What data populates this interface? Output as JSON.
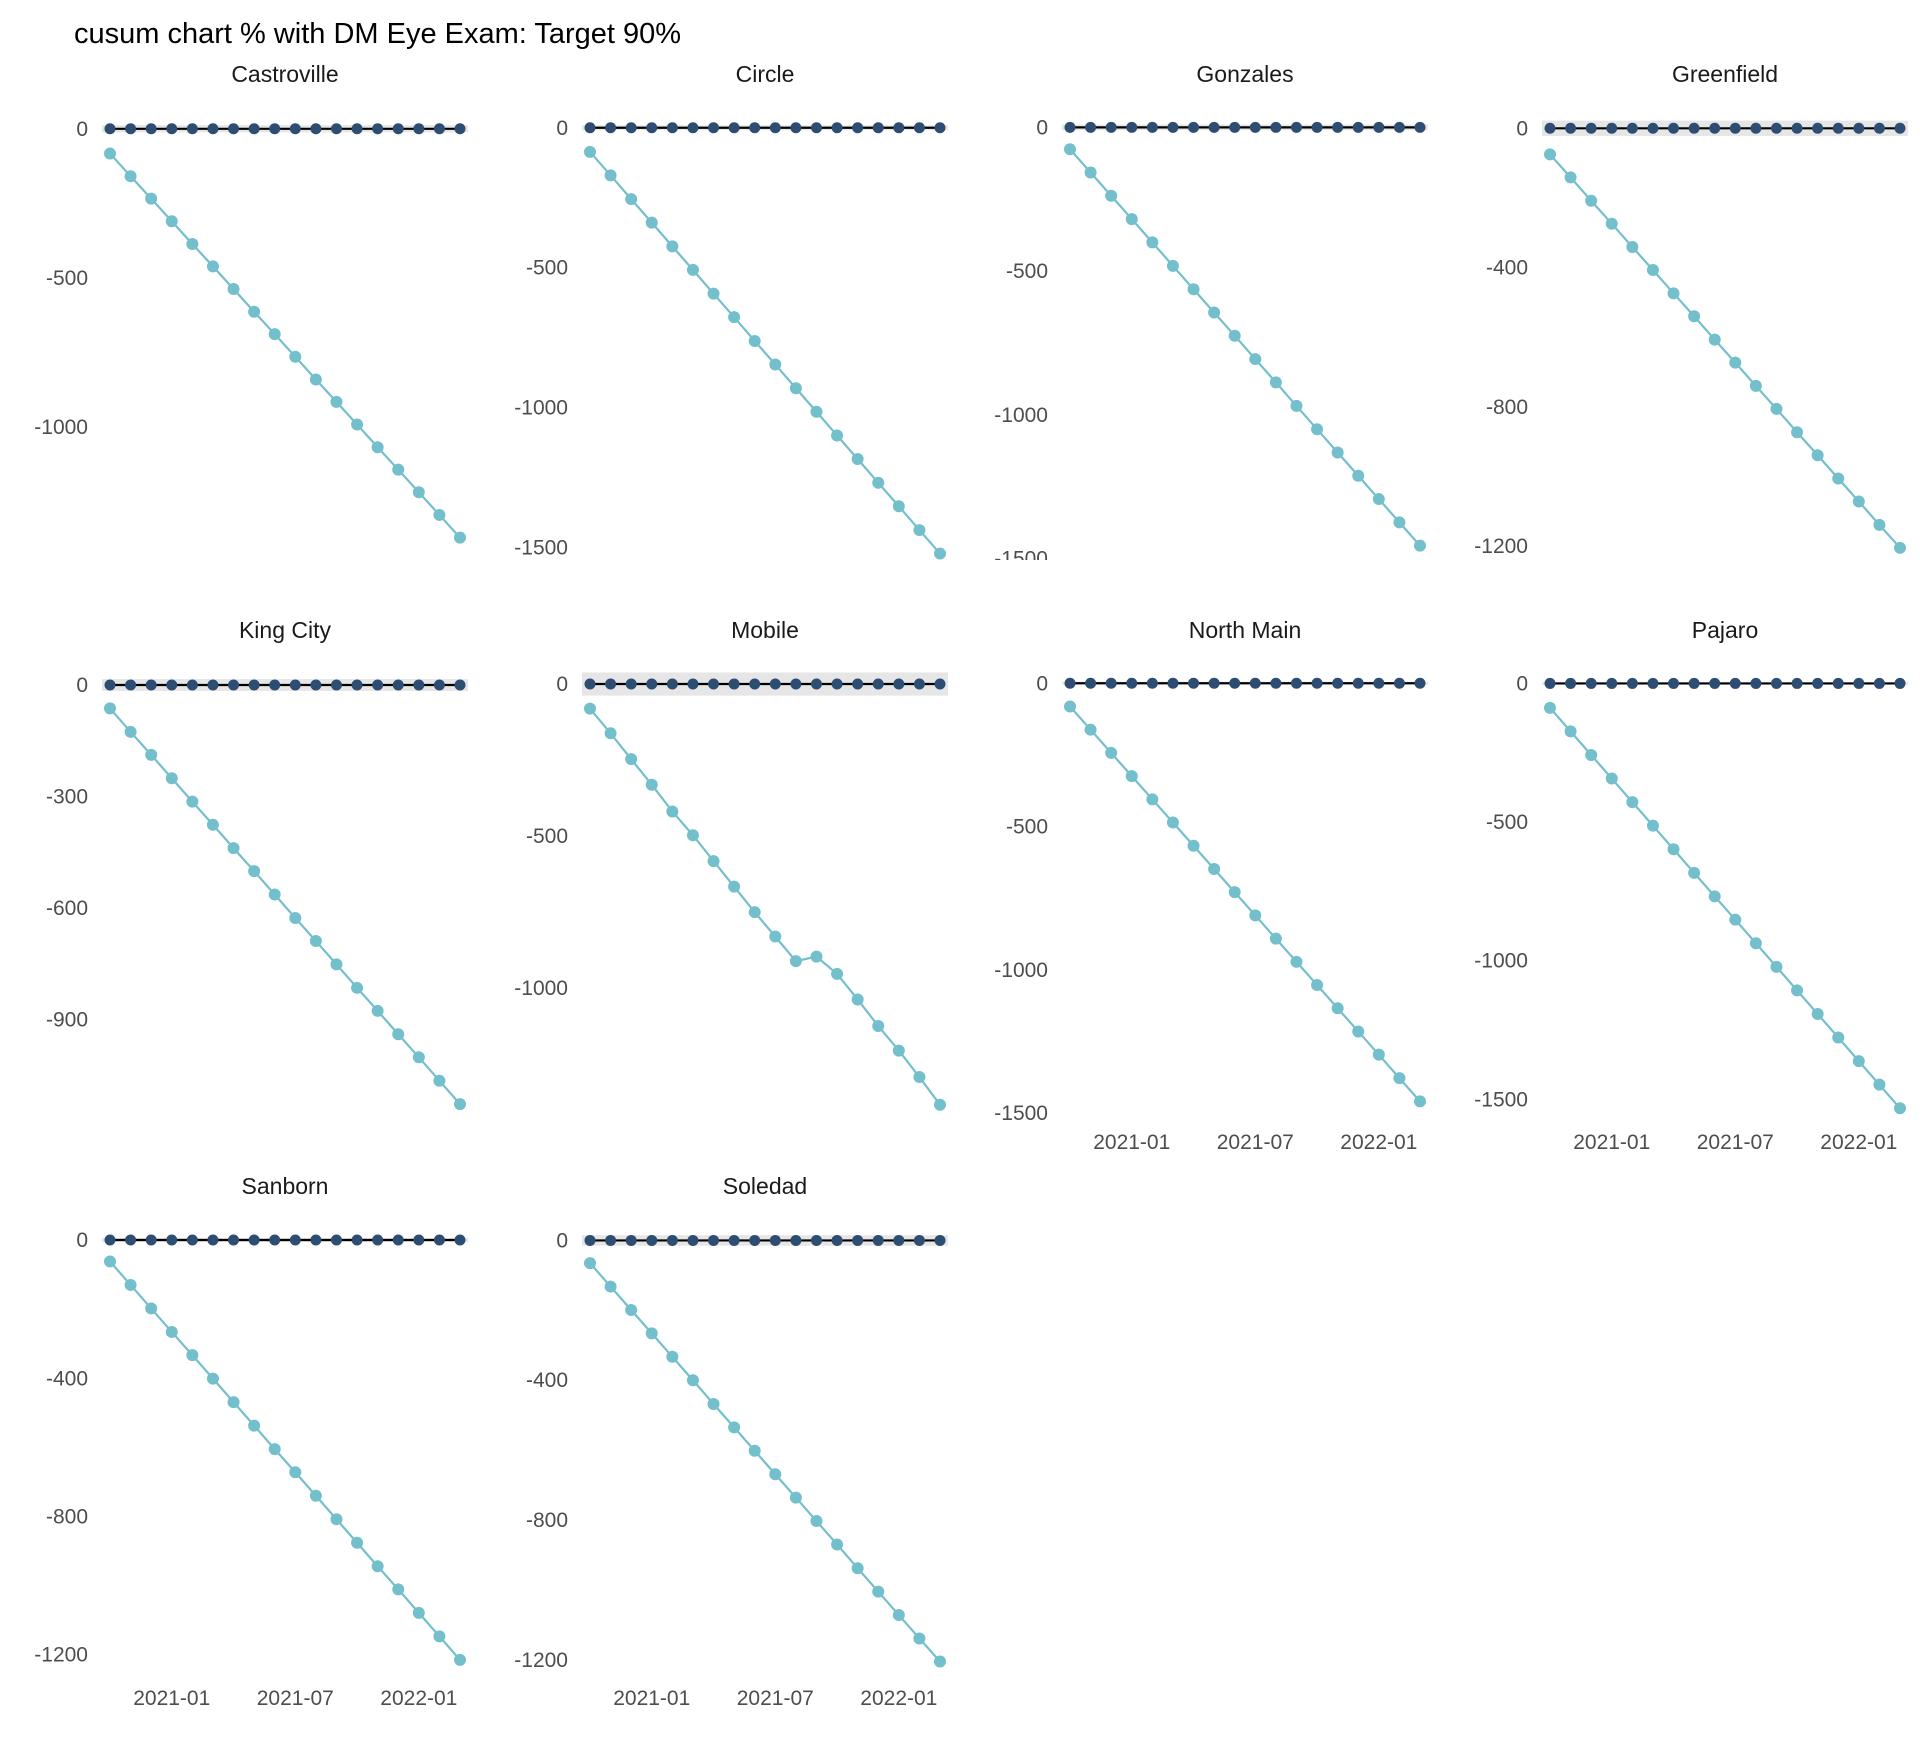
{
  "title": "cusum chart % with DM Eye Exam: Target 90%",
  "colors": {
    "target_line": "#000000",
    "target_point": "#2e4d72",
    "cusum": "#74bfcc",
    "ribbon": "#e6e6e6",
    "tick_text": "#4d4d4d",
    "strip_text": "#1a1a1a",
    "title_text": "#000000"
  },
  "x_axis": {
    "n_points": 18,
    "tick_labels": [
      "2021-01",
      "2021-07",
      "2022-01"
    ],
    "tick_indices": [
      3,
      9,
      15
    ]
  },
  "chart_data": [
    {
      "type": "line",
      "name": "Castroville",
      "show_x_axis": false,
      "y_ticks": [
        0,
        -500,
        -1000
      ],
      "ylim": [
        -1445,
        130
      ],
      "ribbon_halfwidth": 12,
      "series": [
        {
          "name": "target",
          "constant": 0
        },
        {
          "name": "cusum",
          "values": [
            -83,
            -159,
            -234,
            -310,
            -386,
            -461,
            -537,
            -613,
            -688,
            -764,
            -840,
            -915,
            -991,
            -1067,
            -1142,
            -1218,
            -1294,
            -1370
          ]
        }
      ]
    },
    {
      "type": "line",
      "name": "Circle",
      "show_x_axis": false,
      "y_ticks": [
        0,
        -500,
        -1000,
        -1500
      ],
      "ylim": [
        -1545,
        135
      ],
      "ribbon_halfwidth": 9,
      "series": [
        {
          "name": "target",
          "constant": 0
        },
        {
          "name": "cusum",
          "values": [
            -86,
            -170,
            -255,
            -339,
            -424,
            -508,
            -593,
            -677,
            -762,
            -846,
            -931,
            -1015,
            -1100,
            -1184,
            -1269,
            -1353,
            -1438,
            -1522
          ]
        }
      ]
    },
    {
      "type": "line",
      "name": "Gonzales",
      "show_x_axis": false,
      "y_ticks": [
        0,
        -500,
        -1000,
        -1500
      ],
      "ylim": [
        -1505,
        130
      ],
      "ribbon_halfwidth": 10,
      "series": [
        {
          "name": "target",
          "constant": 0
        },
        {
          "name": "cusum",
          "values": [
            -76,
            -157,
            -238,
            -319,
            -400,
            -482,
            -563,
            -644,
            -725,
            -806,
            -887,
            -969,
            -1050,
            -1131,
            -1212,
            -1293,
            -1374,
            -1455
          ]
        }
      ]
    },
    {
      "type": "line",
      "name": "Greenfield",
      "show_x_axis": false,
      "y_ticks": [
        0,
        -400,
        -800,
        -1200
      ],
      "ylim": [
        -1240,
        110
      ],
      "ribbon_halfwidth": 22,
      "series": [
        {
          "name": "target",
          "constant": 0
        },
        {
          "name": "cusum",
          "values": [
            -75,
            -141,
            -208,
            -274,
            -341,
            -407,
            -474,
            -540,
            -607,
            -673,
            -740,
            -806,
            -873,
            -939,
            -1006,
            -1072,
            -1139,
            -1205
          ]
        }
      ]
    },
    {
      "type": "line",
      "name": "King City",
      "show_x_axis": false,
      "y_ticks": [
        0,
        -300,
        -600,
        -900
      ],
      "ylim": [
        -1160,
        105
      ],
      "ribbon_halfwidth": 16,
      "series": [
        {
          "name": "target",
          "constant": 0
        },
        {
          "name": "cusum",
          "values": [
            -63,
            -126,
            -188,
            -251,
            -314,
            -376,
            -439,
            -501,
            -564,
            -627,
            -689,
            -752,
            -815,
            -877,
            -940,
            -1002,
            -1065,
            -1128
          ]
        }
      ]
    },
    {
      "type": "line",
      "name": "Mobile",
      "show_x_axis": false,
      "y_ticks": [
        0,
        -500,
        -1000
      ],
      "ylim": [
        -1420,
        125
      ],
      "ribbon_halfwidth": 38,
      "series": [
        {
          "name": "target",
          "constant": 0
        },
        {
          "name": "cusum",
          "values": [
            -81,
            -162,
            -247,
            -331,
            -419,
            -497,
            -582,
            -666,
            -750,
            -830,
            -911,
            -896,
            -953,
            -1037,
            -1124,
            -1205,
            -1292,
            -1383
          ]
        }
      ]
    },
    {
      "type": "line",
      "name": "North Main",
      "show_x_axis": true,
      "y_ticks": [
        0,
        -500,
        -1000,
        -1500
      ],
      "ylim": [
        -1510,
        130
      ],
      "ribbon_halfwidth": 5,
      "series": [
        {
          "name": "target",
          "constant": 0
        },
        {
          "name": "cusum",
          "values": [
            -81,
            -162,
            -243,
            -324,
            -405,
            -486,
            -567,
            -648,
            -729,
            -810,
            -891,
            -972,
            -1053,
            -1134,
            -1215,
            -1296,
            -1378,
            -1459
          ]
        }
      ]
    },
    {
      "type": "line",
      "name": "Pajaro",
      "show_x_axis": true,
      "y_ticks": [
        0,
        -500,
        -1000,
        -1500
      ],
      "ylim": [
        -1560,
        135
      ],
      "ribbon_halfwidth": 5,
      "series": [
        {
          "name": "target",
          "constant": 0
        },
        {
          "name": "cusum",
          "values": [
            -88,
            -173,
            -258,
            -343,
            -428,
            -513,
            -598,
            -683,
            -768,
            -852,
            -937,
            -1022,
            -1107,
            -1192,
            -1277,
            -1362,
            -1447,
            -1532
          ]
        }
      ]
    },
    {
      "type": "line",
      "name": "Sanborn",
      "show_x_axis": true,
      "y_ticks": [
        0,
        -400,
        -800,
        -1200
      ],
      "ylim": [
        -1250,
        110
      ],
      "ribbon_halfwidth": 6,
      "series": [
        {
          "name": "target",
          "constant": 0
        },
        {
          "name": "cusum",
          "values": [
            -62,
            -130,
            -198,
            -266,
            -333,
            -401,
            -469,
            -537,
            -605,
            -672,
            -740,
            -808,
            -876,
            -944,
            -1011,
            -1079,
            -1147,
            -1215
          ]
        }
      ]
    },
    {
      "type": "line",
      "name": "Soledad",
      "show_x_axis": true,
      "y_ticks": [
        0,
        -400,
        -800,
        -1200
      ],
      "ylim": [
        -1235,
        110
      ],
      "ribbon_halfwidth": 15,
      "series": [
        {
          "name": "target",
          "constant": 0
        },
        {
          "name": "cusum",
          "values": [
            -65,
            -132,
            -199,
            -266,
            -333,
            -400,
            -468,
            -535,
            -602,
            -669,
            -736,
            -803,
            -870,
            -938,
            -1005,
            -1072,
            -1139,
            -1205
          ]
        }
      ]
    }
  ]
}
